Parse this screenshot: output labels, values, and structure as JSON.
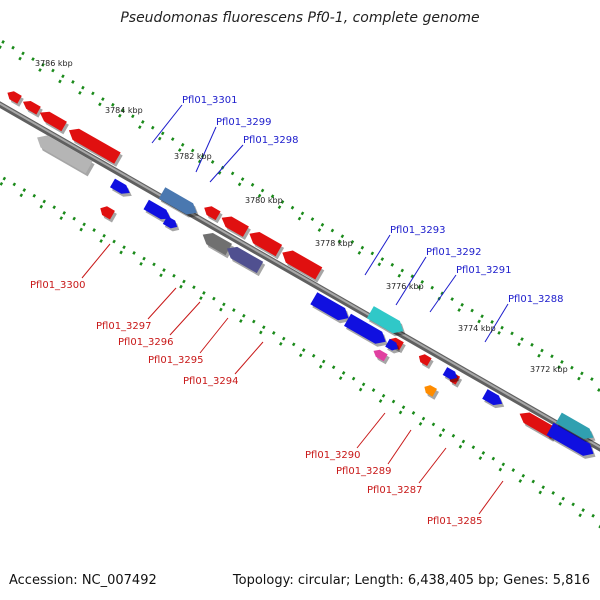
{
  "title": "Pseudomonas fluorescens Pf0-1, complete genome",
  "footer": {
    "accession": "Accession: NC_007492",
    "summary": "Topology: circular; Length: 6,438,405 bp; Genes: 5,816"
  },
  "kbp_ticks": [
    "3786 kbp",
    "3784 kbp",
    "3782 kbp",
    "3780 kbp",
    "3778 kbp",
    "3776 kbp",
    "3774 kbp",
    "3772 kbp"
  ],
  "gene_labels": {
    "top": [
      "Pfl01_3301",
      "Pfl01_3299",
      "Pfl01_3298",
      "Pfl01_3293",
      "Pfl01_3292",
      "Pfl01_3291",
      "Pfl01_3288"
    ],
    "bottom": [
      "Pfl01_3300",
      "Pfl01_3297",
      "Pfl01_3296",
      "Pfl01_3295",
      "Pfl01_3294",
      "Pfl01_3290",
      "Pfl01_3289",
      "Pfl01_3287",
      "Pfl01_3285"
    ]
  },
  "colors": {
    "forward": "#1010e0",
    "reverse": "#e01010",
    "backbone": "#808080",
    "ticks": "#1a8a1a"
  }
}
